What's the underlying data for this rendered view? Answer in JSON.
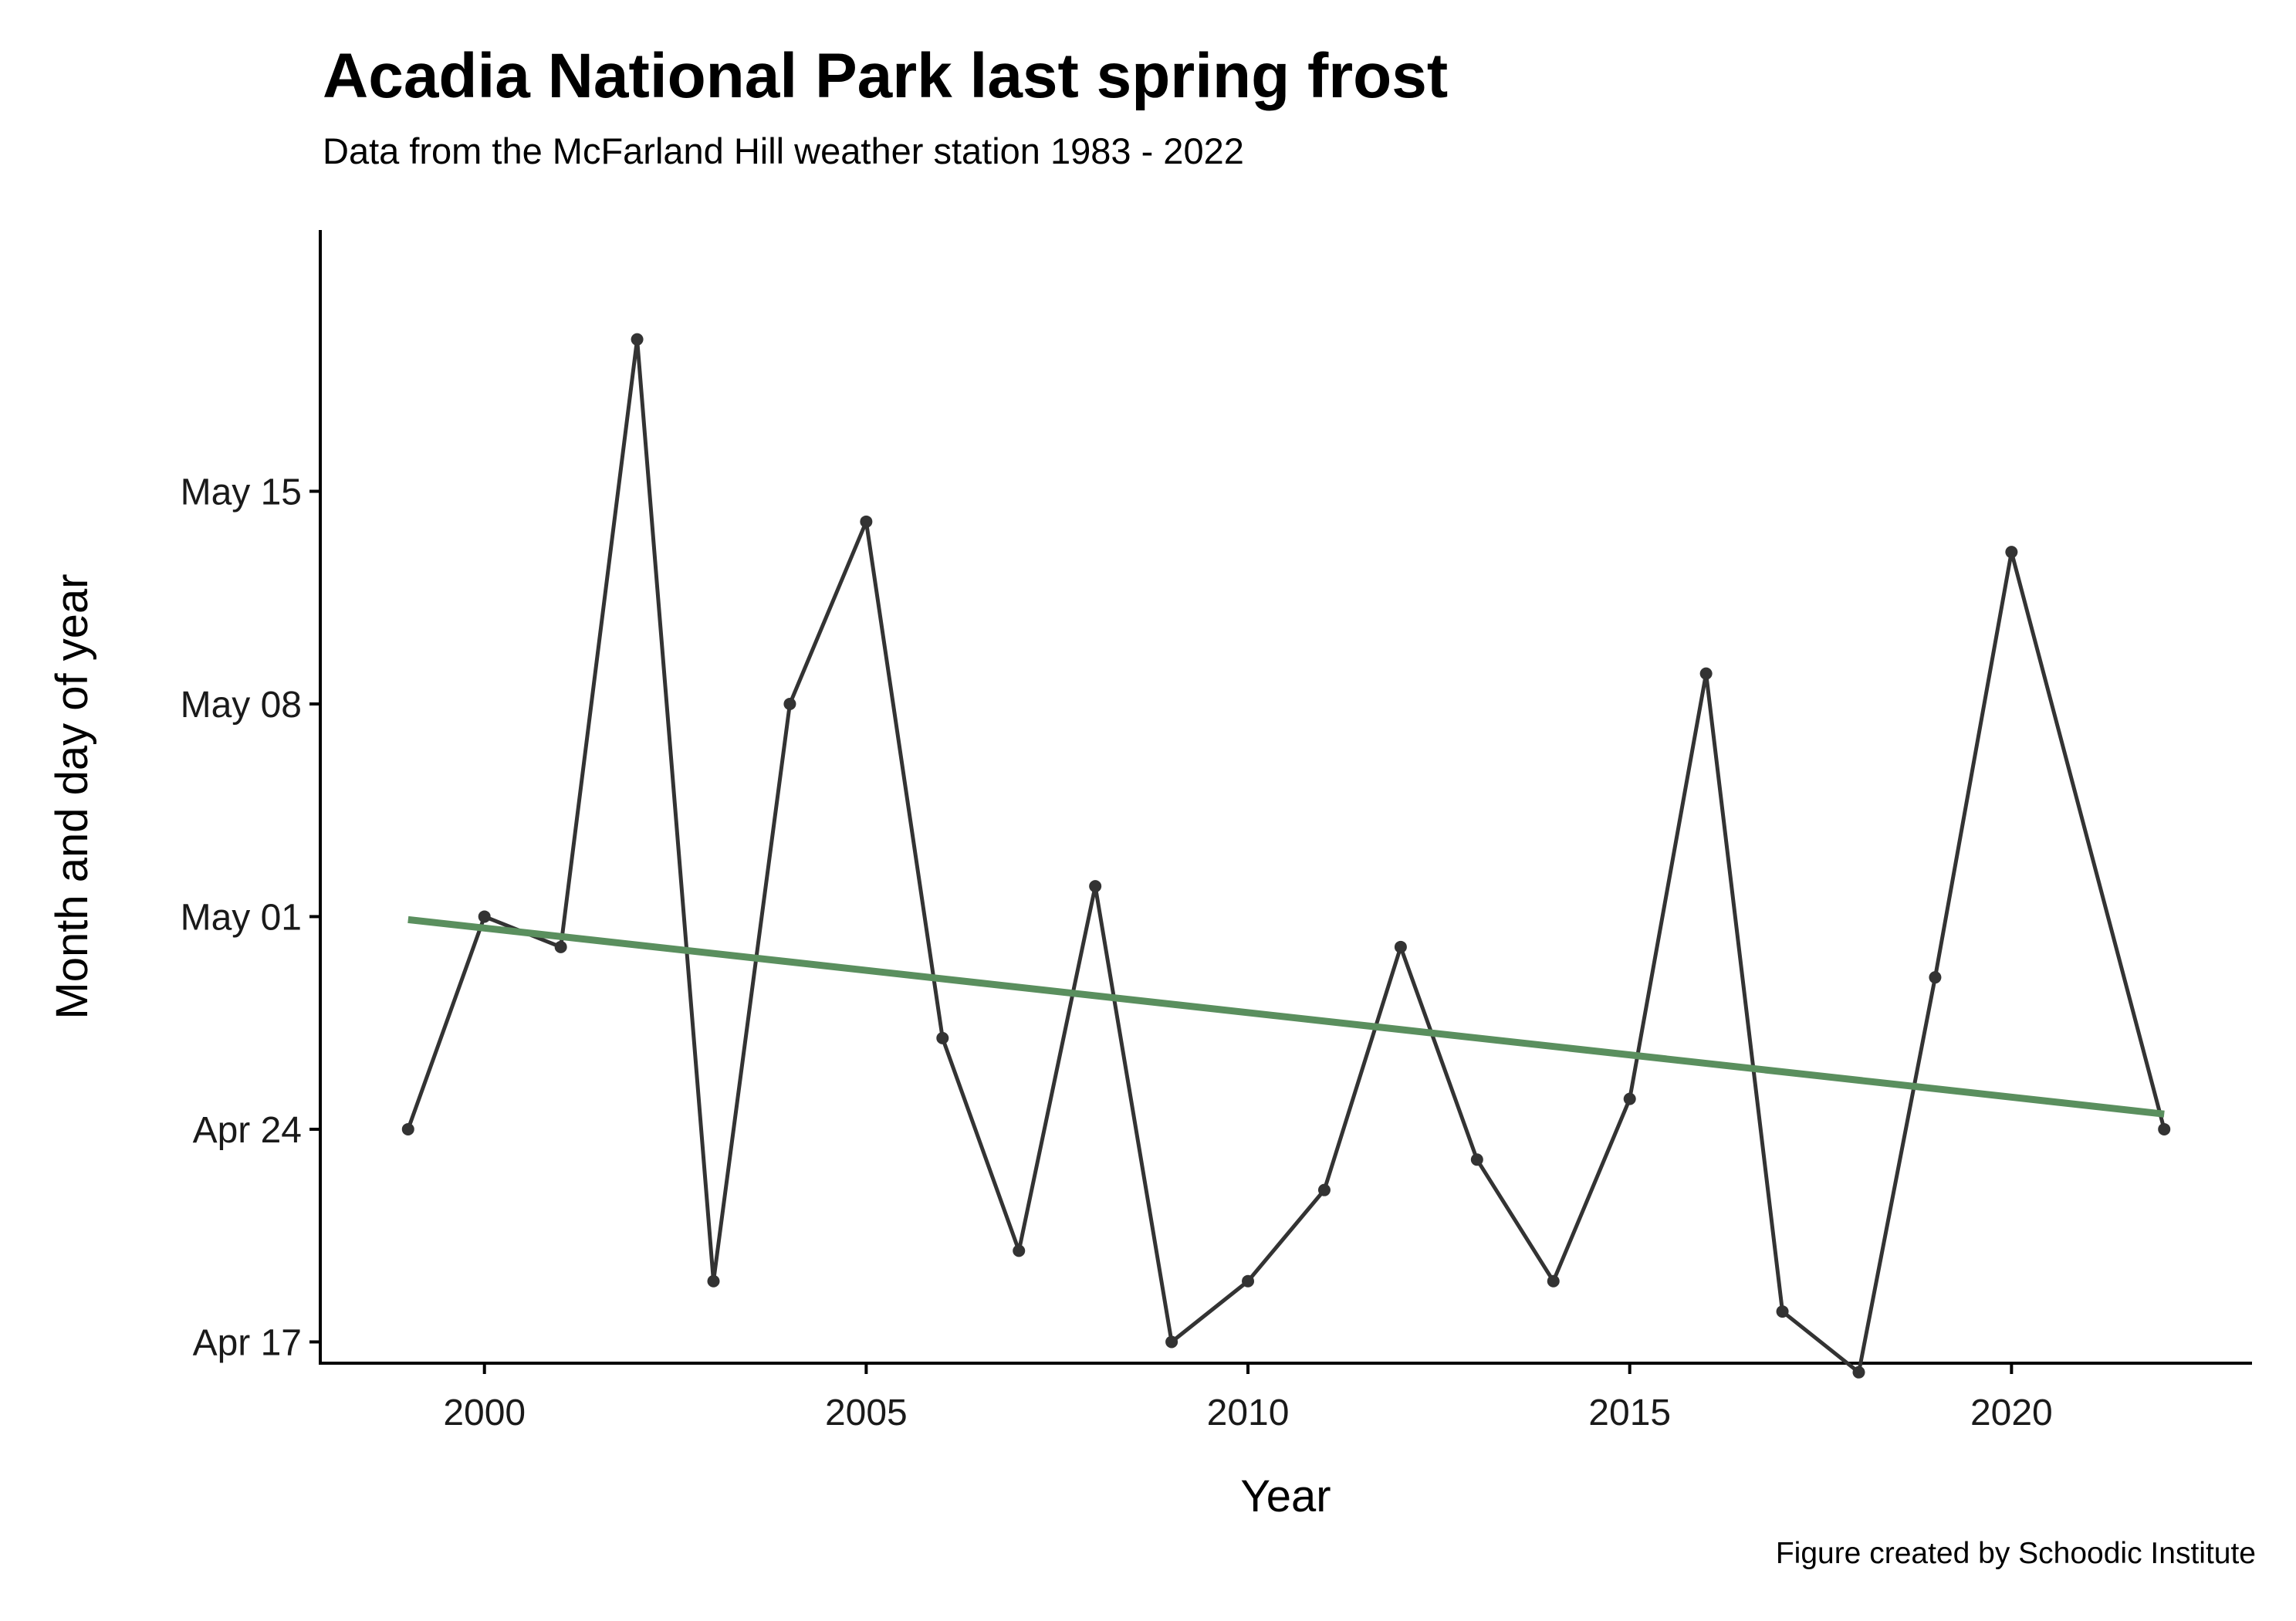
{
  "chart_data": {
    "type": "line",
    "title": "Acadia National Park last spring frost",
    "subtitle": "Data from the McFarland Hill weather station 1983 - 2022",
    "caption": "Figure created by Schoodic Institute",
    "xlabel": "Year",
    "ylabel": "Month and day of year",
    "xlim": [
      1997.85,
      2023.15
    ],
    "ylim": [
      106.3,
      143.6
    ],
    "x_ticks": [
      2000,
      2005,
      2010,
      2015,
      2020
    ],
    "y_ticks": [
      {
        "value": 107,
        "label": "Apr 17"
      },
      {
        "value": 114,
        "label": "Apr 24"
      },
      {
        "value": 121,
        "label": "May 01"
      },
      {
        "value": 128,
        "label": "May 08"
      },
      {
        "value": 135,
        "label": "May 15"
      }
    ],
    "grid": false,
    "series": [
      {
        "type": "line",
        "color": "#333333",
        "x": [
          1999,
          2000,
          2001,
          2002,
          2003,
          2004,
          2005,
          2006,
          2007,
          2008,
          2009,
          2010,
          2011,
          2012,
          2013,
          2014,
          2015,
          2016,
          2017,
          2018,
          2019,
          2020,
          2021,
          2022
        ],
        "y": [
          114,
          121,
          120,
          140,
          109,
          128,
          134,
          117,
          110,
          122,
          107,
          109,
          112,
          120,
          113,
          109,
          115,
          129,
          108,
          106,
          119,
          133,
          null,
          114
        ]
      },
      {
        "type": "trend",
        "color": "#5a8f5e",
        "x": [
          1999,
          2022
        ],
        "y": [
          120.9,
          114.5
        ]
      }
    ]
  }
}
